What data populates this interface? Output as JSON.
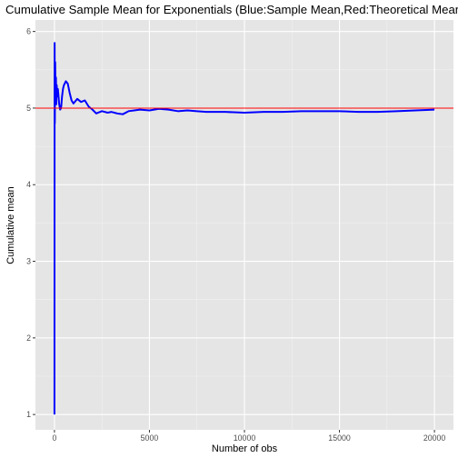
{
  "chart_data": {
    "type": "line",
    "title": "Cumulative Sample Mean for Exponentials  (Blue:Sample Mean,Red:Theoretical Mean)",
    "xlabel": "Number of obs",
    "ylabel": "Cumulative mean",
    "xlim": [
      -1000,
      21000
    ],
    "ylim": [
      0.8,
      6.15
    ],
    "x_ticks": [
      0,
      5000,
      10000,
      15000,
      20000
    ],
    "x_tick_labels": [
      "0",
      "5000",
      "10000",
      "15000",
      "20000"
    ],
    "y_ticks": [
      1,
      2,
      3,
      4,
      5,
      6
    ],
    "y_tick_labels": [
      "1",
      "2",
      "3",
      "4",
      "5",
      "6"
    ],
    "grid": true,
    "background": "#e5e5e5",
    "series": [
      {
        "color": "#0000ff",
        "x": [
          1,
          10,
          20,
          40,
          60,
          80,
          100,
          120,
          150,
          180,
          200,
          250,
          300,
          350,
          400,
          450,
          500,
          600,
          700,
          800,
          900,
          1000,
          1200,
          1400,
          1600,
          1800,
          2000,
          2200,
          2500,
          2800,
          3000,
          3300,
          3600,
          3900,
          4200,
          4500,
          5000,
          5500,
          6000,
          6500,
          7000,
          7500,
          8000,
          9000,
          10000,
          11000,
          12000,
          13000,
          14000,
          15000,
          16000,
          17000,
          18000,
          19000,
          20000
        ],
        "y": [
          1.0,
          5.85,
          4.8,
          5.6,
          5.1,
          5.4,
          5.05,
          5.3,
          5.15,
          5.25,
          5.2,
          5.05,
          4.98,
          5.0,
          5.15,
          5.25,
          5.3,
          5.35,
          5.32,
          5.2,
          5.1,
          5.06,
          5.12,
          5.08,
          5.1,
          5.02,
          4.98,
          4.93,
          4.96,
          4.94,
          4.95,
          4.93,
          4.92,
          4.96,
          4.97,
          4.98,
          4.97,
          4.99,
          4.98,
          4.96,
          4.97,
          4.96,
          4.95,
          4.95,
          4.94,
          4.95,
          4.95,
          4.96,
          4.96,
          4.96,
          4.95,
          4.95,
          4.96,
          4.97,
          4.98
        ]
      }
    ],
    "reference_line": {
      "y": 5,
      "color": "#ff0000"
    }
  }
}
